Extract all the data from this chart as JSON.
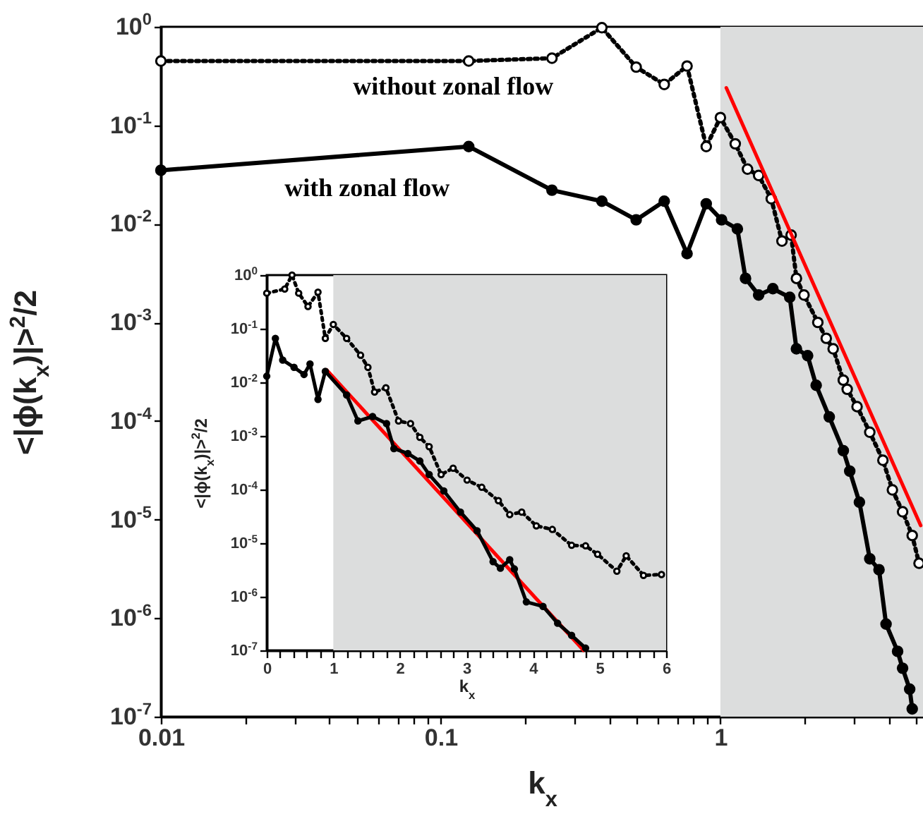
{
  "chart_data": [
    {
      "type": "line",
      "xlabel": "k$_{x}$",
      "ylabel": "<|ϕ(k$_{x}$)|>$^{2}$/2",
      "log": "xy",
      "xlim": [
        0.01,
        5.3
      ],
      "ylim": [
        1e-07,
        1
      ],
      "xticks": [
        0.01,
        {
          "value": 0.02,
          "label": null
        },
        {
          "value": 0.03,
          "label": null
        },
        {
          "value": 0.04,
          "label": null
        },
        {
          "value": 0.05,
          "label": null
        },
        {
          "value": 0.06,
          "label": null
        },
        {
          "value": 0.07,
          "label": null
        },
        {
          "value": 0.08,
          "label": null
        },
        {
          "value": 0.09,
          "label": null
        },
        0.1,
        {
          "value": 0.2,
          "label": null
        },
        {
          "value": 0.3,
          "label": null
        },
        {
          "value": 0.4,
          "label": null
        },
        {
          "value": 0.5,
          "label": null
        },
        {
          "value": 0.6,
          "label": null
        },
        {
          "value": 0.7,
          "label": null
        },
        {
          "value": 0.8,
          "label": null
        },
        {
          "value": 0.9,
          "label": null
        },
        1,
        {
          "value": 2,
          "label": null
        },
        {
          "value": 3,
          "label": null
        },
        {
          "value": 4,
          "label": null
        },
        {
          "value": 5,
          "label": null
        }
      ],
      "yticks": [
        {
          "value": 1e-07,
          "label": "10$^{-7}$"
        },
        {
          "value": 1e-06,
          "label": "10$^{-6}$"
        },
        {
          "value": 1e-05,
          "label": "10$^{-5}$"
        },
        {
          "value": 0.0001,
          "label": "10$^{-4}$"
        },
        {
          "value": 0.001,
          "label": "10$^{-3}$"
        },
        {
          "value": 0.01,
          "label": "10$^{-2}$"
        },
        {
          "value": 0.1,
          "label": "10$^{-1}$"
        },
        {
          "value": 1,
          "label": "10$^{0}$"
        }
      ],
      "bands": [
        {
          "axis": "x",
          "from": 1,
          "to": 5.3,
          "color": "#dcdddd"
        }
      ],
      "series": [
        {
          "name": "without zonal flow",
          "color": "#000000",
          "marker": "circle",
          "line_style": "dotted",
          "x": [
            0.01,
            0.126,
            0.25,
            0.377,
            0.5,
            0.63,
            0.76,
            0.89,
            1.0,
            1.13,
            1.25,
            1.37,
            1.52,
            1.66,
            1.79,
            1.87,
            1.99,
            2.23,
            2.39,
            2.53,
            2.75,
            2.84,
            3.08,
            3.42,
            3.81,
            4.12,
            4.48,
            4.85,
            5.13
          ],
          "values": [
            0.45,
            0.45,
            0.48,
            0.98,
            0.39,
            0.26,
            0.4,
            0.061,
            0.12,
            0.065,
            0.036,
            0.031,
            0.018,
            0.0067,
            0.0077,
            0.0028,
            0.0019,
            0.001,
            0.00069,
            0.00054,
            0.00026,
            0.00021,
            0.00014,
            7.7e-05,
            4e-05,
            2e-05,
            1.2e-05,
            6.9e-06,
            3.6e-06
          ]
        },
        {
          "name": "with zonal flow",
          "color": "#000000",
          "marker": "circle",
          "line_style": "solid",
          "x": [
            0.01,
            0.126,
            0.25,
            0.377,
            0.5,
            0.63,
            0.76,
            0.89,
            1.01,
            1.15,
            1.23,
            1.37,
            1.54,
            1.77,
            1.87,
            2.05,
            2.2,
            2.45,
            2.75,
            2.9,
            3.14,
            3.42,
            3.69,
            3.91,
            4.3,
            4.48,
            4.75,
            4.85
          ],
          "values": [
            0.035,
            0.061,
            0.022,
            0.017,
            0.011,
            0.017,
            0.005,
            0.016,
            0.011,
            0.0089,
            0.0028,
            0.0019,
            0.0022,
            0.0018,
            0.00054,
            0.00046,
            0.00023,
            0.00011,
            5e-05,
            3.1e-05,
            1.5e-05,
            4e-06,
            3.1e-06,
            8.7e-07,
            4.6e-07,
            3.1e-07,
            1.9e-07,
            1.2e-07
          ]
        },
        {
          "color": "#ff0000",
          "marker": "none",
          "line_style": "solid",
          "x": [
            1.05,
            5.2
          ],
          "values": [
            0.24,
            8.7e-06
          ]
        }
      ]
    },
    {
      "type": "line",
      "xlabel": "k$_{x}$",
      "ylabel": "<|ϕ(k$_{x}$)|>$^{2}$/2",
      "log": "y",
      "xlim": [
        0,
        6
      ],
      "ylim": [
        1e-07,
        1
      ],
      "xticks": [
        0,
        {
          "value": 0.2,
          "label": null
        },
        {
          "value": 0.4,
          "label": null
        },
        {
          "value": 0.6,
          "label": null
        },
        {
          "value": 0.8,
          "label": null
        },
        1,
        {
          "value": 1.2,
          "label": null
        },
        {
          "value": 1.4,
          "label": null
        },
        {
          "value": 1.6,
          "label": null
        },
        {
          "value": 1.8,
          "label": null
        },
        2,
        {
          "value": 2.2,
          "label": null
        },
        {
          "value": 2.4,
          "label": null
        },
        {
          "value": 2.6,
          "label": null
        },
        {
          "value": 2.8,
          "label": null
        },
        3,
        {
          "value": 3.2,
          "label": null
        },
        {
          "value": 3.4,
          "label": null
        },
        {
          "value": 3.6,
          "label": null
        },
        {
          "value": 3.8,
          "label": null
        },
        4,
        {
          "value": 4.2,
          "label": null
        },
        {
          "value": 4.4,
          "label": null
        },
        {
          "value": 4.6,
          "label": null
        },
        {
          "value": 4.8,
          "label": null
        },
        5,
        {
          "value": 5.2,
          "label": null
        },
        {
          "value": 5.4,
          "label": null
        },
        {
          "value": 5.6,
          "label": null
        },
        {
          "value": 5.8,
          "label": null
        },
        6
      ],
      "yticks": [
        {
          "value": 1e-07,
          "label": "10$^{-7}$"
        },
        {
          "value": 1e-06,
          "label": "10$^{-6}$"
        },
        {
          "value": 1e-05,
          "label": "10$^{-5}$"
        },
        {
          "value": 0.0001,
          "label": "10$^{-4}$"
        },
        {
          "value": 0.001,
          "label": "10$^{-3}$"
        },
        {
          "value": 0.01,
          "label": "10$^{-2}$"
        },
        {
          "value": 0.1,
          "label": "10$^{-1}$"
        },
        {
          "value": 1,
          "label": "10$^{0}$"
        }
      ],
      "bands": [
        {
          "axis": "x",
          "from": 1,
          "to": 6,
          "color": "#dcdddd"
        }
      ],
      "series": [
        {
          "color": "#ff0000",
          "marker": "none",
          "line_style": "solid",
          "x": [
            0.9,
            4.76
          ],
          "values": [
            0.017,
            1e-07
          ]
        },
        {
          "color": "#000000",
          "marker": "circle",
          "line_style": "dotted",
          "x": [
            0,
            0.27,
            0.38,
            0.48,
            0.62,
            0.77,
            0.88,
            1.0,
            1.2,
            1.41,
            1.52,
            1.62,
            1.79,
            1.98,
            2.16,
            2.3,
            2.44,
            2.62,
            2.8,
            3.01,
            3.23,
            3.48,
            3.65,
            3.83,
            4.05,
            4.29,
            4.58,
            4.79,
            4.97,
            5.26,
            5.4,
            5.66,
            5.93
          ],
          "values": [
            0.46,
            0.55,
            1.0,
            0.46,
            0.26,
            0.48,
            0.066,
            0.12,
            0.066,
            0.032,
            0.019,
            0.0066,
            0.0079,
            0.0019,
            0.0017,
            0.00094,
            0.00063,
            0.00019,
            0.00025,
            0.00015,
            0.00011,
            6.2e-05,
            3.4e-05,
            3.8e-05,
            2.1e-05,
            1.8e-05,
            9.1e-06,
            8.9e-06,
            6.2e-06,
            3e-06,
            5.8e-06,
            2.5e-06,
            2.6e-06
          ]
        },
        {
          "color": "#000000",
          "marker": "circle",
          "line_style": "solid",
          "x": [
            0,
            0.13,
            0.24,
            0.41,
            0.56,
            0.65,
            0.77,
            0.88,
            1.2,
            1.37,
            1.59,
            1.8,
            1.91,
            2.12,
            2.3,
            2.44,
            2.66,
            2.91,
            3.16,
            3.4,
            3.51,
            3.65,
            3.72,
            3.9,
            4.15,
            4.37,
            4.58,
            4.79
          ],
          "values": [
            0.013,
            0.066,
            0.026,
            0.019,
            0.014,
            0.022,
            0.0048,
            0.016,
            0.0058,
            0.0019,
            0.0023,
            0.0017,
            0.00058,
            0.00047,
            0.00034,
            0.00019,
            9.4e-05,
            3.8e-05,
            1.7e-05,
            4.5e-06,
            3.4e-06,
            4.9e-06,
            3.3e-06,
            8e-07,
            6.6e-07,
            3.2e-07,
            1.9e-07,
            1.1e-07
          ]
        }
      ]
    }
  ]
}
